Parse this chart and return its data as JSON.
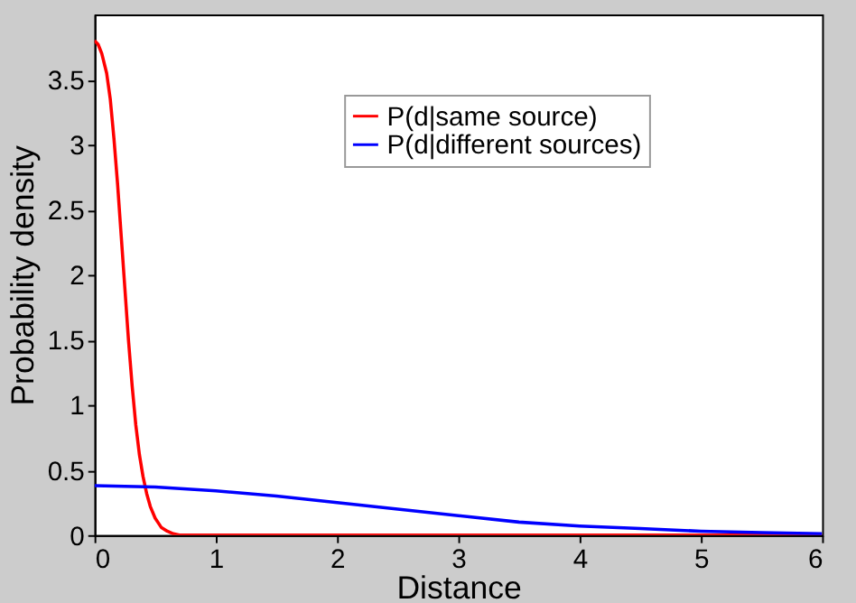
{
  "chart_data": {
    "type": "line",
    "xlabel": "Distance",
    "ylabel": "Probability density",
    "xlim": [
      0,
      6
    ],
    "ylim": [
      0,
      4
    ],
    "xticks": [
      0,
      1,
      2,
      3,
      4,
      5,
      6
    ],
    "yticks": [
      0,
      0.5,
      1,
      1.5,
      2,
      2.5,
      3,
      3.5
    ],
    "legend": "top",
    "grid": false,
    "series": [
      {
        "name": "P(d|same source)",
        "color": "#ff0000",
        "x": [
          0,
          0.03,
          0.06,
          0.1,
          0.13,
          0.16,
          0.19,
          0.22,
          0.25,
          0.28,
          0.31,
          0.34,
          0.37,
          0.4,
          0.43,
          0.46,
          0.5,
          0.55,
          0.6,
          0.65,
          0.7,
          0.75,
          0.8,
          1,
          2,
          3,
          4,
          5,
          6
        ],
        "values": [
          3.8,
          3.77,
          3.7,
          3.55,
          3.35,
          3.05,
          2.7,
          2.3,
          1.9,
          1.5,
          1.15,
          0.85,
          0.62,
          0.45,
          0.32,
          0.22,
          0.13,
          0.06,
          0.03,
          0.01,
          0,
          0,
          0,
          0,
          0,
          0,
          0,
          0,
          0
        ]
      },
      {
        "name": "P(d|different sources)",
        "color": "#0000ff",
        "x": [
          0,
          0.5,
          1,
          1.5,
          2,
          2.5,
          3,
          3.5,
          4,
          4.5,
          5,
          5.5,
          6
        ],
        "values": [
          0.38,
          0.37,
          0.34,
          0.3,
          0.25,
          0.2,
          0.15,
          0.1,
          0.07,
          0.05,
          0.03,
          0.02,
          0.01
        ]
      }
    ]
  }
}
